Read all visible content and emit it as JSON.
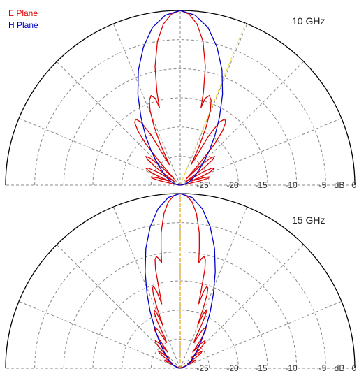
{
  "chart_data": [
    {
      "type": "polar-half",
      "annotation": "10 GHz",
      "unit_label": "dB",
      "radial_ticks": [
        "-25",
        "-20",
        "-15",
        "-10",
        "-5",
        "0"
      ],
      "radial_tick_values": [
        -25,
        -20,
        -15,
        -10,
        -5,
        0
      ],
      "r_range_db": [
        -30,
        0
      ],
      "angle_range_deg": [
        -90,
        90
      ],
      "angular_grid_step_deg": 22.5,
      "grid": true,
      "legend": {
        "placement": "top-left",
        "entries": [
          {
            "label": "E Plane",
            "color": "#dd0000"
          },
          {
            "label": "H Plane",
            "color": "#0000cc"
          }
        ]
      },
      "marker_line": {
        "angle_deg": 22,
        "color": "#f2e040"
      },
      "series": [
        {
          "name": "E Plane",
          "color": "#dd0000",
          "angle_deg": [
            0,
            3,
            6,
            9,
            12,
            14,
            15,
            16,
            18,
            20,
            22,
            24,
            26,
            28,
            29,
            30,
            32,
            34,
            36,
            38,
            40,
            42,
            44,
            46,
            48,
            50,
            52,
            54,
            56,
            58,
            60,
            62,
            64,
            66,
            68,
            70,
            72,
            74,
            76,
            78,
            80,
            82,
            84,
            86,
            88,
            90
          ],
          "gain_db": [
            0,
            -0.6,
            -2.2,
            -5.0,
            -9.2,
            -13.5,
            -16.2,
            -14.5,
            -13.8,
            -14.5,
            -16.2,
            -19.0,
            -22.5,
            -26.0,
            -25.0,
            -20.2,
            -17.2,
            -16.3,
            -16.7,
            -18.2,
            -21.0,
            -25.5,
            -28.5,
            -25.5,
            -23.0,
            -22.3,
            -23.0,
            -25.0,
            -28.0,
            -29.0,
            -25.5,
            -23.8,
            -23.5,
            -24.3,
            -26.0,
            -28.0,
            -26.0,
            -24.8,
            -25.0,
            -26.5,
            -28.5,
            -29.5,
            -30,
            -30,
            -30,
            -30
          ]
        },
        {
          "name": "H Plane",
          "color": "#0000cc",
          "angle_deg": [
            0,
            5,
            10,
            15,
            20,
            25,
            30,
            35,
            40,
            45,
            50,
            55,
            60,
            65,
            70,
            75,
            80,
            85,
            90
          ],
          "gain_db": [
            0,
            -0.7,
            -2.5,
            -5.5,
            -9.0,
            -12.8,
            -16.5,
            -19.6,
            -22.2,
            -24.2,
            -25.6,
            -26.6,
            -27.3,
            -27.9,
            -28.4,
            -28.9,
            -29.4,
            -29.8,
            -30
          ]
        }
      ]
    },
    {
      "type": "polar-half",
      "annotation": "15 GHz",
      "unit_label": "dB",
      "radial_ticks": [
        "-25",
        "-20",
        "-15",
        "-10",
        "-5",
        "0"
      ],
      "radial_tick_values": [
        -25,
        -20,
        -15,
        -10,
        -5,
        0
      ],
      "r_range_db": [
        -30,
        0
      ],
      "angle_range_deg": [
        -90,
        90
      ],
      "angular_grid_step_deg": 22.5,
      "grid": true,
      "marker_line": {
        "angle_deg": 0,
        "color": "#f0a000"
      },
      "series": [
        {
          "name": "E Plane",
          "color": "#dd0000",
          "angle_deg": [
            0,
            2,
            4,
            6,
            8,
            9,
            10,
            11,
            12,
            13,
            14,
            15,
            16,
            17,
            18,
            19,
            20,
            21,
            22,
            23,
            24,
            25,
            26,
            27,
            28,
            30,
            32,
            34,
            36,
            38,
            40,
            42,
            44,
            46,
            48,
            50,
            52,
            54,
            56,
            58,
            60,
            62,
            64,
            66,
            68,
            70,
            75,
            80,
            85,
            90
          ],
          "gain_db": [
            0,
            -0.3,
            -1.3,
            -3.3,
            -6.5,
            -9.0,
            -11.6,
            -10.8,
            -10.4,
            -10.8,
            -12.5,
            -16.0,
            -18.5,
            -16.2,
            -15.2,
            -15.4,
            -16.5,
            -19.0,
            -22.0,
            -20.0,
            -19.0,
            -19.4,
            -21.0,
            -24.5,
            -25.0,
            -22.5,
            -21.6,
            -22.2,
            -24.0,
            -26.5,
            -24.5,
            -23.6,
            -24.0,
            -25.5,
            -27.5,
            -26.0,
            -25.2,
            -25.6,
            -27.0,
            -28.5,
            -27.5,
            -27.0,
            -27.5,
            -28.5,
            -29.5,
            -30,
            -30,
            -30,
            -30,
            -30
          ]
        },
        {
          "name": "H Plane",
          "color": "#0000cc",
          "angle_deg": [
            0,
            4,
            8,
            12,
            16,
            20,
            24,
            28,
            32,
            36,
            40,
            44,
            48,
            52,
            56,
            60,
            65,
            70,
            75,
            80,
            85,
            90
          ],
          "gain_db": [
            0,
            -0.6,
            -2.4,
            -5.2,
            -8.6,
            -12.4,
            -16.0,
            -19.0,
            -21.6,
            -23.5,
            -24.9,
            -25.9,
            -26.7,
            -27.3,
            -27.8,
            -28.2,
            -28.6,
            -29.0,
            -29.4,
            -29.7,
            -30,
            -30
          ]
        }
      ]
    }
  ]
}
